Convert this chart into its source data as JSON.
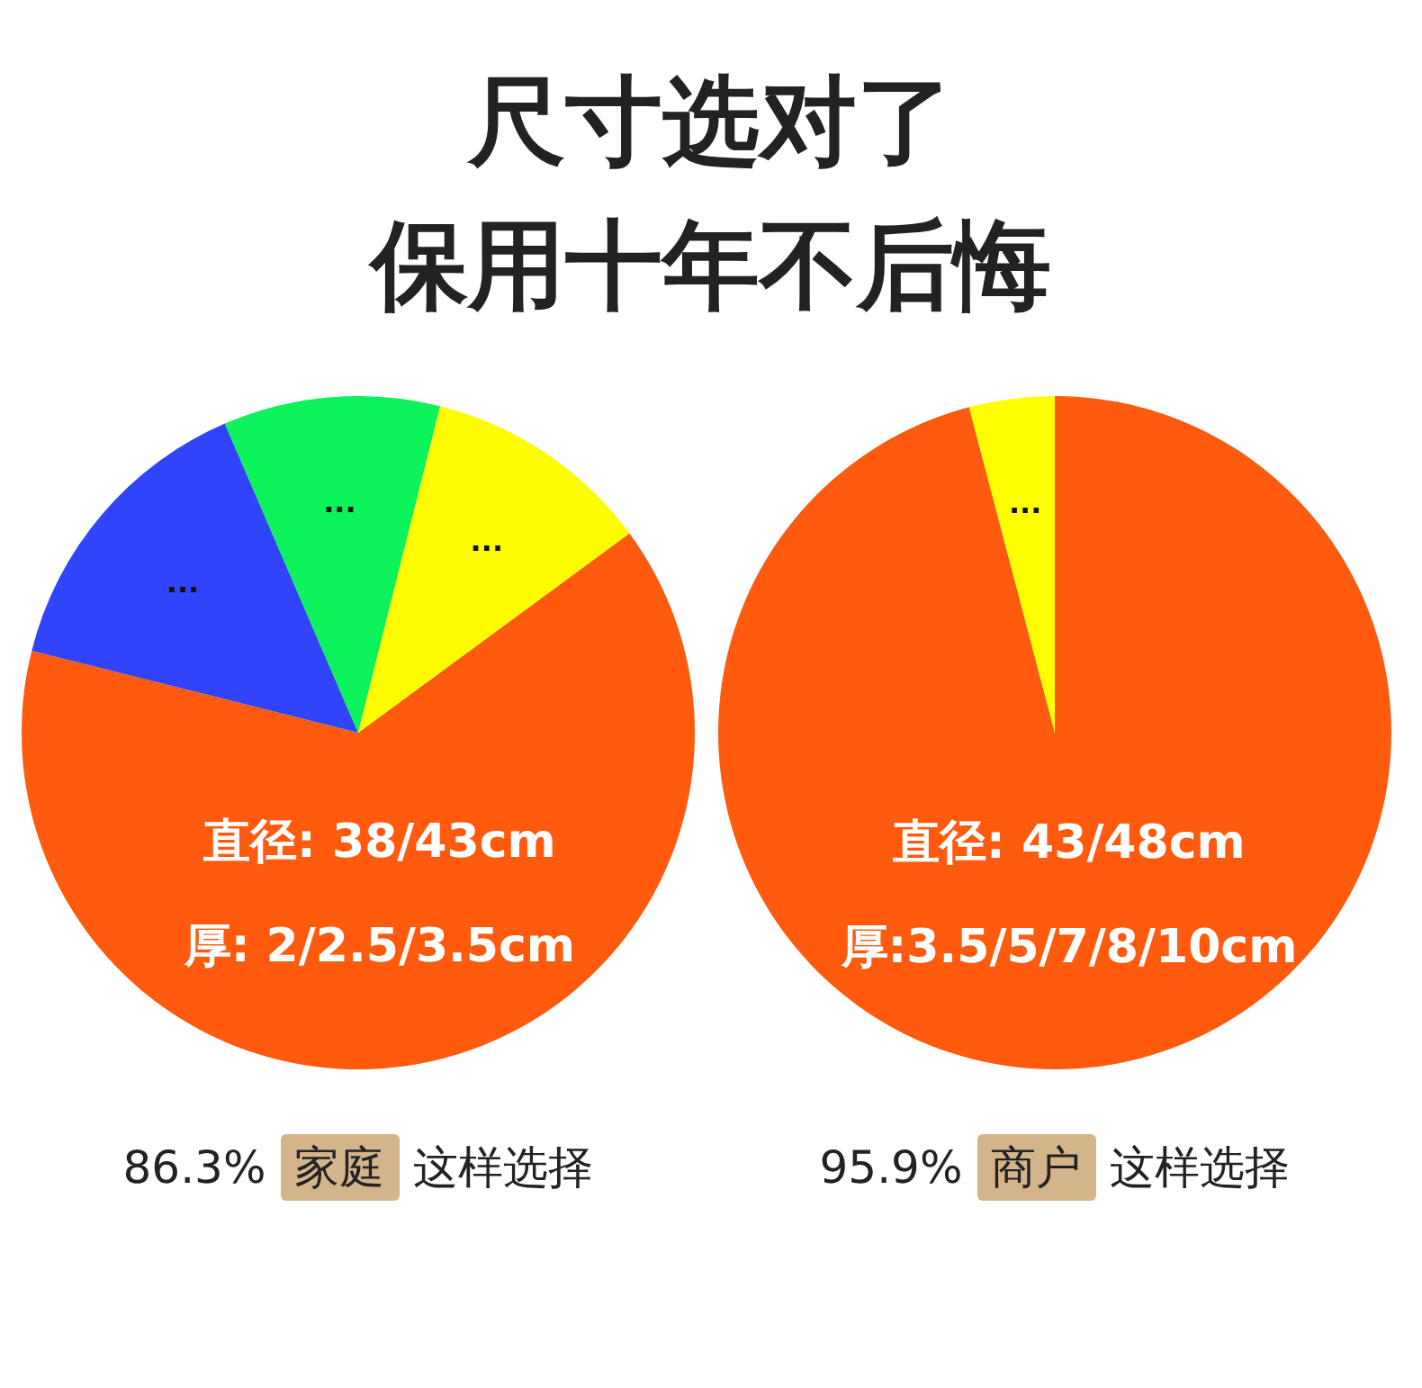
{
  "chart_data": [
    {
      "type": "pie",
      "title": "尺寸选对了保用十年不后悔",
      "categories": [
        "直径: 38/43cm\n厚: 2/2.5/3.5cm",
        "...",
        "...",
        "..."
      ],
      "values": [
        64.0,
        14.6,
        10.4,
        11.0
      ],
      "colors": [
        "#ff5a0e",
        "#3044fb",
        "#0cf25a",
        "#fffb00"
      ],
      "legend": false,
      "annotations": [
        "86.3%",
        "家庭",
        "这样选择"
      ]
    },
    {
      "type": "pie",
      "categories": [
        "直径: 43/48cm\n厚:3.5/5/7/8/10cm",
        "..."
      ],
      "values": [
        95.9,
        4.1
      ],
      "colors": [
        "#ff5a0e",
        "#ffff00"
      ],
      "legend": false,
      "annotations": [
        "95.9%",
        "商户",
        "这样选择"
      ]
    }
  ]
}
